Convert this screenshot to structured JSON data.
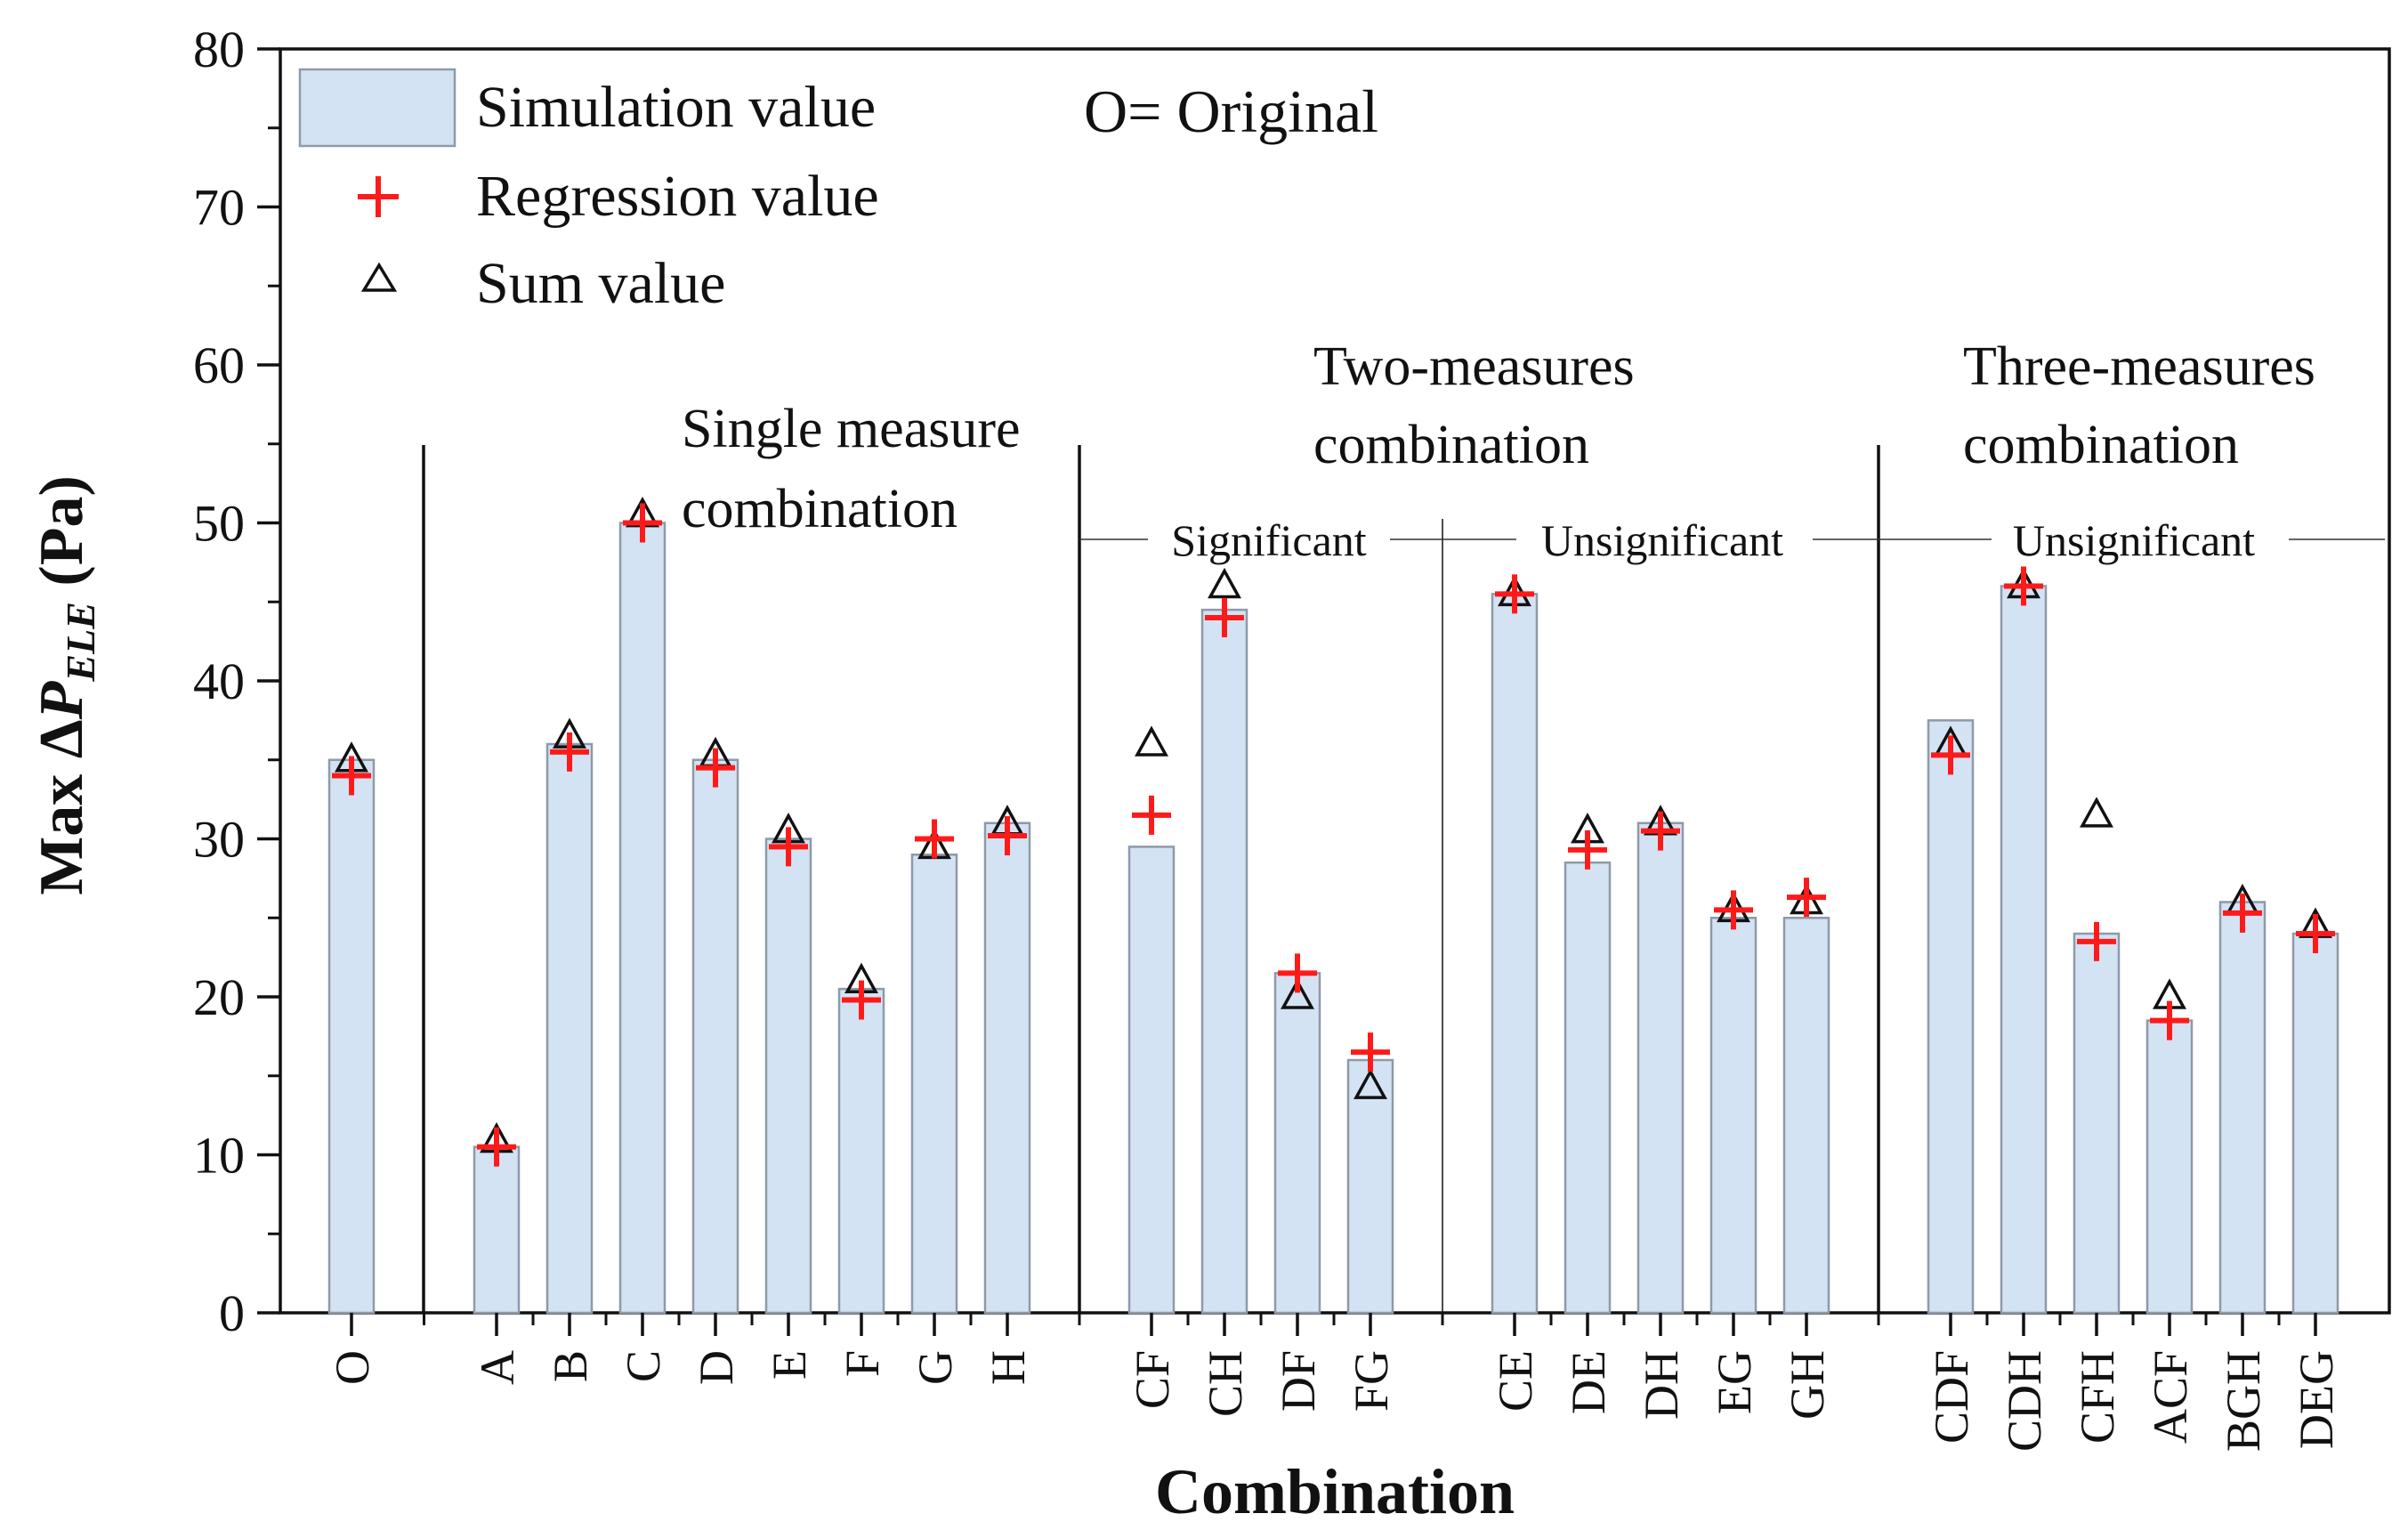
{
  "chart_data": {
    "type": "bar",
    "xlabel": "Combination",
    "ylabel": {
      "prefix": "Max  Δ",
      "symbol": "P",
      "subscript": "ELE",
      "unit": " (Pa)"
    },
    "ylim": [
      0,
      80
    ],
    "yticks": [
      0,
      10,
      20,
      30,
      40,
      50,
      60,
      70,
      80
    ],
    "categories": [
      "O",
      "A",
      "B",
      "C",
      "D",
      "E",
      "F",
      "G",
      "H",
      "CF",
      "CH",
      "DF",
      "FG",
      "CE",
      "DE",
      "DH",
      "EG",
      "GH",
      "CDF",
      "CDH",
      "CFH",
      "ACF",
      "BGH",
      "DEG"
    ],
    "series": [
      {
        "name": "Simulation value",
        "marker": "bar",
        "values": [
          35.0,
          10.5,
          36.0,
          50.0,
          35.0,
          30.0,
          20.5,
          29.0,
          31.0,
          29.5,
          44.5,
          21.5,
          16.0,
          45.5,
          28.5,
          31.0,
          25.0,
          25.0,
          37.5,
          46.0,
          24.0,
          18.5,
          26.0,
          24.0
        ]
      },
      {
        "name": "Regression value",
        "marker": "plus",
        "values": [
          34.0,
          10.5,
          35.5,
          50.0,
          34.5,
          29.5,
          19.8,
          30.0,
          30.2,
          31.5,
          44.0,
          21.5,
          16.5,
          45.5,
          29.3,
          30.5,
          25.5,
          26.3,
          35.3,
          46.0,
          23.5,
          18.5,
          25.3,
          24.0
        ]
      },
      {
        "name": "Sum value",
        "marker": "triangle",
        "values": [
          35.0,
          10.9,
          36.5,
          50.5,
          35.3,
          30.5,
          21.0,
          29.5,
          31.0,
          36.0,
          46.0,
          20.0,
          14.3,
          45.5,
          30.5,
          31.0,
          25.5,
          26.0,
          36.0,
          46.0,
          31.5,
          20.0,
          26.0,
          24.5
        ]
      }
    ],
    "legend": {
      "position": "top-left",
      "items": [
        "Simulation value",
        "Regression value",
        "Sum value"
      ],
      "note": "O= Original"
    },
    "group_labels": {
      "single": [
        "Single measure",
        "combination"
      ],
      "two": [
        "Two-measures",
        "combination"
      ],
      "three": [
        "Three-measures",
        "combination"
      ],
      "significant": "Significant",
      "unsignificant_two": "Unsignificant",
      "unsignificant_three": "Unsignificant"
    },
    "colors": {
      "bar_fill": "#d3e3f4",
      "bar_stroke": "#8e9aa8",
      "regression": "#ff1a1a",
      "sum": "#111111",
      "axis": "#111111"
    }
  }
}
